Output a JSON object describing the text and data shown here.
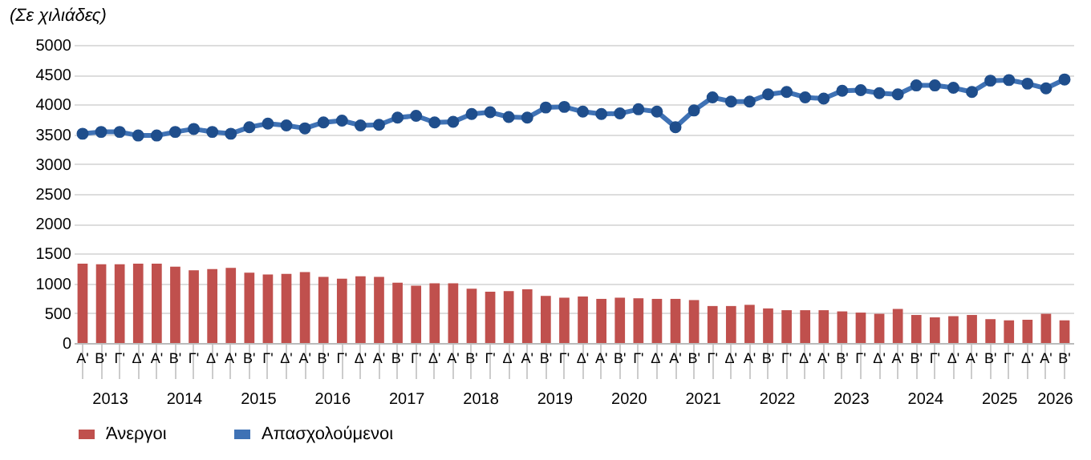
{
  "chart_data": {
    "type": "bar",
    "title": "(Σε χιλιάδες)",
    "categories": [
      "Α'",
      "Β'",
      "Γ'",
      "Δ'",
      "Α'",
      "Β'",
      "Γ'",
      "Δ'",
      "Α'",
      "Β'",
      "Γ'",
      "Δ'",
      "Α'",
      "Β'",
      "Γ'",
      "Δ'",
      "Α'",
      "Β'",
      "Γ'",
      "Δ'",
      "Α'",
      "Β'",
      "Γ'",
      "Δ'",
      "Α'",
      "Β'",
      "Γ'",
      "Δ'",
      "Α'",
      "Β'",
      "Γ'",
      "Δ'",
      "Α'",
      "Β'",
      "Γ'",
      "Δ'",
      "Α'",
      "Β'",
      "Γ'",
      "Δ'",
      "Α'",
      "Β'",
      "Γ'",
      "Δ'",
      "Α'",
      "Β'",
      "Γ'",
      "Δ'",
      "Α'",
      "Β'",
      "Γ'",
      "Δ'",
      "Α'",
      "Β'"
    ],
    "series": [
      {
        "name": "Άνεργοι",
        "type": "bar",
        "color": "#c0504d",
        "values": [
          1330,
          1320,
          1320,
          1330,
          1330,
          1280,
          1220,
          1240,
          1260,
          1180,
          1150,
          1160,
          1190,
          1110,
          1080,
          1120,
          1110,
          1010,
          960,
          1000,
          1000,
          910,
          860,
          870,
          900,
          790,
          760,
          780,
          740,
          760,
          750,
          740,
          740,
          720,
          620,
          620,
          640,
          580,
          550,
          550,
          550,
          530,
          510,
          490,
          570,
          470,
          430,
          450,
          470,
          400,
          380,
          390,
          490,
          380
        ]
      },
      {
        "name": "Απασχολούμενοι",
        "type": "line",
        "color": "#3f72b5",
        "values": [
          3510,
          3540,
          3540,
          3480,
          3480,
          3540,
          3590,
          3540,
          3510,
          3620,
          3680,
          3650,
          3600,
          3700,
          3730,
          3650,
          3660,
          3780,
          3810,
          3700,
          3710,
          3840,
          3870,
          3790,
          3780,
          3950,
          3960,
          3880,
          3840,
          3850,
          3920,
          3880,
          3620,
          3900,
          4120,
          4050,
          4050,
          4170,
          4210,
          4120,
          4100,
          4230,
          4240,
          4190,
          4170,
          4320,
          4320,
          4280,
          4210,
          4400,
          4410,
          4350,
          4270,
          4420
        ]
      }
    ],
    "annotations": [
      "2013",
      "2014",
      "2015",
      "2016",
      "2017",
      "2018",
      "2019",
      "2020",
      "2021",
      "2022",
      "2023",
      "2024",
      "2025",
      "2026"
    ],
    "ylim": [
      0,
      5000
    ],
    "yticks": [
      0,
      500,
      1000,
      1500,
      2000,
      2500,
      3000,
      3500,
      4000,
      4500,
      5000
    ],
    "grid": "y",
    "legend": "bottom",
    "marker": "circle",
    "line_style": "solid"
  }
}
